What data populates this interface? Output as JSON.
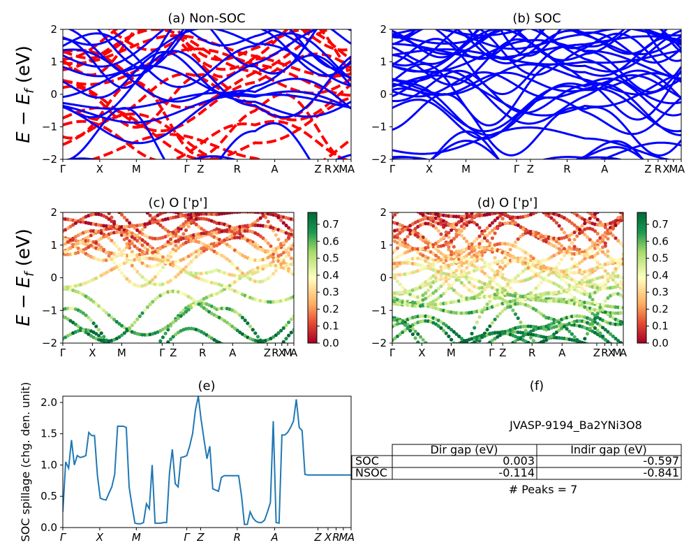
{
  "material": "JVASP-9194_Ba2YNi3O8",
  "peaks_label": "# Peaks = 7",
  "band_ylabel": "E − E",
  "band_ylabel_sub": "f",
  "band_ylabel_unit": " (eV)",
  "kpath_labels": [
    "Γ",
    "X",
    "M",
    "Γ",
    "Z",
    "R",
    "A",
    "Z",
    "R",
    "X",
    "M",
    "A"
  ],
  "kpath_labels_e": [
    "Γ",
    "X",
    "M",
    "Γ",
    "Z",
    "R",
    "A",
    "Z",
    "X",
    "R",
    "M",
    "A"
  ],
  "colors": {
    "non_soc_up": "#ff0000",
    "non_soc_dn": "#0000ff",
    "soc": "#0000ff",
    "spillage": "#1f77b4"
  },
  "colorbar": {
    "cmap": "RdYlGn",
    "ticks": [
      "0.0",
      "0.1",
      "0.2",
      "0.3",
      "0.4",
      "0.5",
      "0.6",
      "0.7"
    ],
    "range": [
      0,
      0.77
    ]
  },
  "gap_table": {
    "headers": [
      "",
      "Dir gap (eV)",
      "Indir gap (eV)"
    ],
    "rows": [
      {
        "label": "SOC",
        "dir": "0.003",
        "indir": "-0.597"
      },
      {
        "label": "NSOC",
        "dir": "-0.114",
        "indir": "-0.841"
      }
    ]
  },
  "chart_data": [
    {
      "type": "line",
      "panel": "a",
      "title": "(a) Non-SOC",
      "ylim": [
        -2,
        2
      ],
      "yticks": [
        "−2",
        "−1",
        "0",
        "1",
        "2"
      ],
      "series": []
    },
    {
      "type": "line",
      "panel": "b",
      "title": "(b) SOC",
      "ylim": [
        -2,
        2
      ],
      "yticks": [
        "−2",
        "−1",
        "0",
        "1",
        "2"
      ],
      "series": []
    },
    {
      "type": "scatter",
      "panel": "c",
      "title": "(c)  O ['p']",
      "ylim": [
        -2,
        2
      ],
      "yticks": [
        "−2",
        "−1",
        "0",
        "1",
        "2"
      ],
      "series": []
    },
    {
      "type": "scatter",
      "panel": "d",
      "title": "(d) O ['p']",
      "ylim": [
        -2,
        2
      ],
      "yticks": [
        "−2",
        "−1",
        "0",
        "1",
        "2"
      ],
      "series": []
    },
    {
      "type": "line",
      "panel": "e",
      "title": "(e)",
      "ylabel": "SOC spillage (chg. den. unit)",
      "ylim": [
        0,
        2.1
      ],
      "yticks": [
        "0.0",
        "0.5",
        "1.0",
        "1.5",
        "2.0"
      ],
      "x": [
        0,
        0.01,
        0.02,
        0.03,
        0.04,
        0.05,
        0.06,
        0.07,
        0.08,
        0.09,
        0.1,
        0.11,
        0.12,
        0.13,
        0.14,
        0.15,
        0.16,
        0.17,
        0.18,
        0.19,
        0.2,
        0.21,
        0.22,
        0.23,
        0.24,
        0.25,
        0.26,
        0.27,
        0.28,
        0.29,
        0.3,
        0.31,
        0.32,
        0.33,
        0.34,
        0.35,
        0.36,
        0.37,
        0.38,
        0.39,
        0.4,
        0.41,
        0.42,
        0.43,
        0.44,
        0.45,
        0.46,
        0.47,
        0.48,
        0.49,
        0.5,
        0.51,
        0.52,
        0.53,
        0.54,
        0.55,
        0.56,
        0.57,
        0.58,
        0.59,
        0.6,
        0.61,
        0.62,
        0.63,
        0.64,
        0.65,
        0.66,
        0.67,
        0.68,
        0.69,
        0.7,
        0.71,
        0.72,
        0.73,
        0.74,
        0.75,
        0.76,
        0.77,
        0.78,
        0.79,
        0.8,
        0.81,
        0.82,
        0.83,
        0.84,
        0.85,
        0.86,
        0.87,
        0.88,
        0.89,
        0.9,
        0.91,
        0.92,
        0.93,
        0.94,
        0.95,
        0.96,
        0.97,
        0.98,
        0.99,
        1.0
      ],
      "series": [
        {
          "values": [
            0.25,
            1.05,
            0.95,
            1.4,
            1.0,
            1.15,
            1.12,
            1.13,
            1.15,
            1.52,
            1.47,
            1.47,
            0.83,
            0.47,
            0.45,
            0.44,
            0.55,
            0.65,
            0.85,
            1.62,
            1.62,
            1.62,
            1.6,
            0.65,
            0.35,
            0.07,
            0.06,
            0.06,
            0.08,
            0.38,
            0.3,
            1.0,
            0.07,
            0.07,
            0.07,
            0.08,
            0.08,
            0.87,
            1.25,
            0.7,
            0.65,
            1.12,
            1.13,
            1.15,
            1.3,
            1.5,
            1.88,
            2.1,
            1.72,
            1.4,
            1.1,
            1.3,
            0.62,
            0.6,
            0.58,
            0.8,
            0.83,
            0.83,
            0.83,
            0.83,
            0.83,
            0.83,
            0.5,
            0.05,
            0.05,
            0.25,
            0.15,
            0.1,
            0.08,
            0.08,
            0.12,
            0.25,
            0.4,
            1.7,
            0.08,
            0.07,
            1.48,
            1.48,
            1.52,
            1.6,
            1.7,
            2.05,
            1.6,
            1.55,
            0.85,
            0.84,
            0.84,
            0.84,
            0.84,
            0.84,
            0.84,
            0.84,
            0.84,
            0.84,
            0.84,
            0.84,
            0.84,
            0.84,
            0.84,
            0.84,
            0.84
          ]
        }
      ]
    }
  ]
}
